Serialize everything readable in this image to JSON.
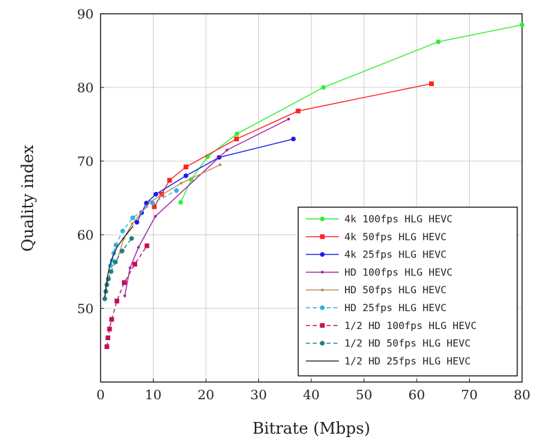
{
  "chart_data": {
    "type": "line",
    "xlabel": "Bitrate (Mbps)",
    "ylabel": "Quality index",
    "xlim": [
      0,
      80
    ],
    "ylim": [
      40,
      90
    ],
    "xticks": [
      0,
      10,
      20,
      30,
      40,
      50,
      60,
      70,
      80
    ],
    "yticks": [
      50,
      60,
      70,
      80,
      90
    ],
    "grid": true,
    "legend_position": "bottom-right",
    "series": [
      {
        "name": "4k 100fps HLG HEVC",
        "color": "#33ee33",
        "marker": "circle",
        "dashed": false,
        "points": [
          [
            15.2,
            64.4
          ],
          [
            17.2,
            67.5
          ],
          [
            20.3,
            70.6
          ],
          [
            25.9,
            73.7
          ],
          [
            42.3,
            80.0
          ],
          [
            64.1,
            86.2
          ],
          [
            80.0,
            88.5
          ]
        ]
      },
      {
        "name": "4k 50fps HLG HEVC",
        "color": "#ff2222",
        "marker": "square",
        "dashed": false,
        "points": [
          [
            10.2,
            63.8
          ],
          [
            11.6,
            65.5
          ],
          [
            13.1,
            67.4
          ],
          [
            16.2,
            69.2
          ],
          [
            25.8,
            73.0
          ],
          [
            37.5,
            76.8
          ],
          [
            62.8,
            80.5
          ]
        ]
      },
      {
        "name": "4k 25fps HLG HEVC",
        "color": "#1a1aee",
        "marker": "circle",
        "dashed": false,
        "points": [
          [
            6.9,
            61.7
          ],
          [
            7.8,
            63.0
          ],
          [
            8.7,
            64.3
          ],
          [
            10.5,
            65.5
          ],
          [
            16.2,
            68.0
          ],
          [
            22.5,
            70.5
          ],
          [
            36.6,
            73.0
          ]
        ]
      },
      {
        "name": "HD 100fps HLG HEVC",
        "color": "#a020a0",
        "marker": "dot",
        "dashed": false,
        "points": [
          [
            4.6,
            51.7
          ],
          [
            5.6,
            55.5
          ],
          [
            7.2,
            58.3
          ],
          [
            10.4,
            62.5
          ],
          [
            24.0,
            71.5
          ],
          [
            35.7,
            75.7
          ]
        ]
      },
      {
        "name": "HD 50fps HLG HEVC",
        "color": "#c08a50",
        "marker": "dot",
        "dashed": false,
        "points": [
          [
            3.0,
            56.2
          ],
          [
            4.4,
            59.5
          ],
          [
            6.0,
            61.5
          ],
          [
            9.5,
            64.5
          ],
          [
            15.3,
            67.0
          ],
          [
            22.7,
            69.5
          ]
        ]
      },
      {
        "name": "HD 25fps HLG HEVC",
        "color": "#30b0e8",
        "marker": "circle",
        "dashed": true,
        "points": [
          [
            1.9,
            55.8
          ],
          [
            2.2,
            56.5
          ],
          [
            2.5,
            57.5
          ],
          [
            2.9,
            58.6
          ],
          [
            4.2,
            60.5
          ],
          [
            6.1,
            62.3
          ],
          [
            9.9,
            64.3
          ],
          [
            14.4,
            66.0
          ]
        ]
      },
      {
        "name": "1/2 HD 100fps HLG HEVC",
        "color": "#c0105a",
        "marker": "square",
        "dashed": true,
        "points": [
          [
            1.2,
            44.8
          ],
          [
            1.4,
            46.0
          ],
          [
            1.7,
            47.2
          ],
          [
            2.1,
            48.5
          ],
          [
            3.1,
            51.0
          ],
          [
            4.5,
            53.5
          ],
          [
            6.5,
            56.0
          ],
          [
            8.8,
            58.5
          ]
        ]
      },
      {
        "name": "1/2 HD 50fps HLG HEVC",
        "color": "#208080",
        "marker": "circle",
        "dashed": true,
        "points": [
          [
            0.8,
            51.3
          ],
          [
            1.0,
            52.3
          ],
          [
            1.2,
            53.2
          ],
          [
            1.5,
            54.0
          ],
          [
            2.0,
            55.0
          ],
          [
            2.8,
            56.3
          ],
          [
            4.1,
            57.8
          ],
          [
            5.9,
            59.5
          ]
        ]
      },
      {
        "name": "1/2 HD 25fps HLG HEVC",
        "color": "#222222",
        "marker": "none",
        "dashed": false,
        "points": [
          [
            0.8,
            51.5
          ],
          [
            1.0,
            52.8
          ],
          [
            1.3,
            54.2
          ],
          [
            1.7,
            55.7
          ],
          [
            2.3,
            57.0
          ],
          [
            3.1,
            58.3
          ],
          [
            4.3,
            59.5
          ],
          [
            6.2,
            61.2
          ]
        ]
      }
    ]
  }
}
